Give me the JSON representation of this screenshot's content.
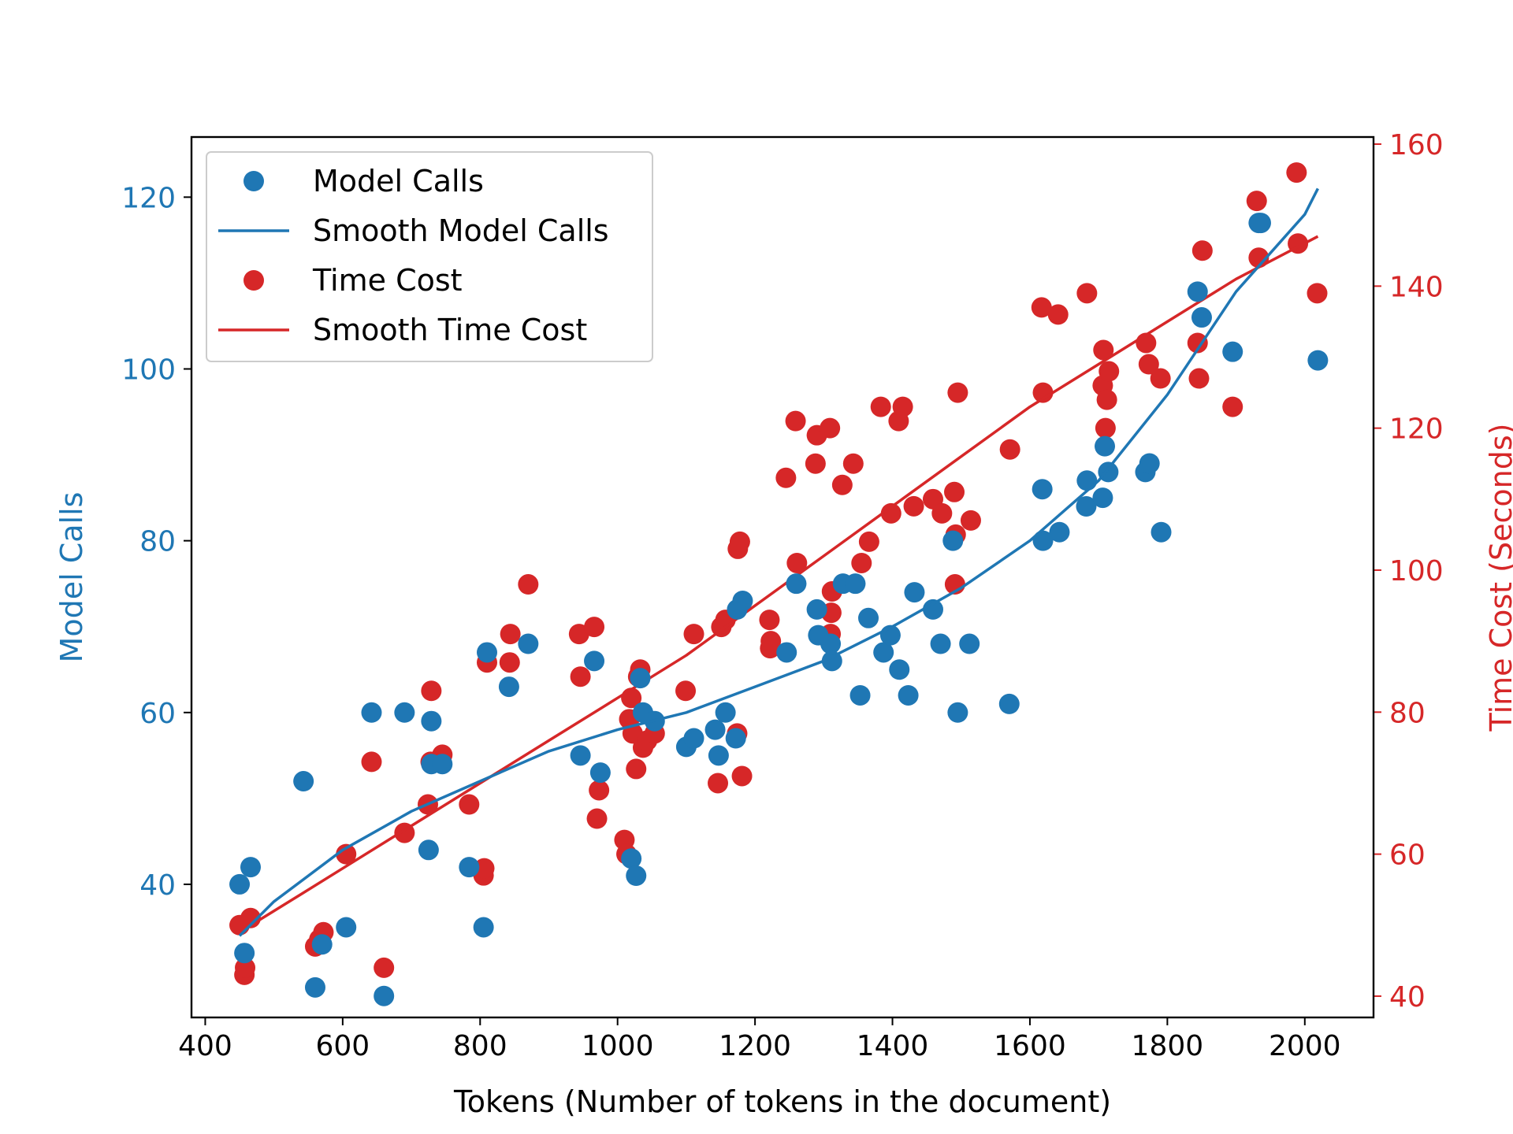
{
  "chart_data": {
    "type": "scatter",
    "title": "",
    "xlabel": "Tokens (Number of tokens in the document)",
    "ylabel_left": "Model Calls",
    "ylabel_right": "Time Cost (Seconds)",
    "xlim": [
      380,
      2100
    ],
    "ylim_left": [
      24.5,
      127
    ],
    "ylim_right": [
      37,
      161
    ],
    "x_ticks": [
      400,
      600,
      800,
      1000,
      1200,
      1400,
      1600,
      1800,
      2000
    ],
    "y_left_ticks": [
      40,
      60,
      80,
      100,
      120
    ],
    "y_right_ticks": [
      40,
      60,
      80,
      100,
      120,
      140,
      160
    ],
    "legend_position": "upper-left",
    "colors": {
      "model_calls": "#1f77b4",
      "time_cost": "#d62728",
      "axis": "#000000"
    },
    "legend": [
      "Model Calls",
      "Smooth Model Calls",
      "Time Cost",
      "Smooth Time Cost"
    ],
    "series": [
      {
        "name": "Model Calls",
        "axis": "left",
        "kind": "points",
        "x": [
          450,
          457,
          466,
          543,
          560,
          570,
          605,
          642,
          660,
          690,
          725,
          729,
          729,
          745,
          784,
          805,
          810,
          842,
          870,
          946,
          966,
          975,
          1020,
          1027,
          1033,
          1037,
          1054,
          1100,
          1111,
          1142,
          1147,
          1157,
          1172,
          1174,
          1182,
          1246,
          1260,
          1290,
          1292,
          1310,
          1312,
          1328,
          1346,
          1353,
          1365,
          1387,
          1397,
          1410,
          1423,
          1432,
          1459,
          1470,
          1488,
          1495,
          1512,
          1570,
          1618,
          1619,
          1643,
          1682,
          1683,
          1706,
          1709,
          1714,
          1768,
          1774,
          1791,
          1844,
          1850,
          1895,
          1933,
          1936,
          2019
        ],
        "y": [
          40,
          32,
          42,
          52,
          28,
          33,
          35,
          60,
          27,
          60,
          44,
          54,
          59,
          54,
          42,
          35,
          67,
          63,
          68,
          55,
          66,
          53,
          43,
          41,
          64,
          60,
          59,
          56,
          57,
          58,
          55,
          60,
          57,
          72,
          73,
          67,
          75,
          72,
          69,
          68,
          66,
          75,
          75,
          62,
          71,
          67,
          69,
          65,
          62,
          74,
          72,
          68,
          80,
          60,
          68,
          61,
          86,
          80,
          81,
          84,
          87,
          85,
          91,
          88,
          88,
          89,
          81,
          109,
          106,
          102,
          117,
          117,
          101
        ]
      },
      {
        "name": "Smooth Model Calls",
        "axis": "left",
        "kind": "line",
        "x": [
          450,
          500,
          600,
          700,
          800,
          900,
          1000,
          1100,
          1200,
          1300,
          1400,
          1500,
          1600,
          1700,
          1800,
          1900,
          2000,
          2019
        ],
        "y": [
          34,
          38,
          44,
          48.5,
          52,
          55.5,
          58,
          60,
          63,
          66,
          70,
          74.5,
          80,
          87,
          97,
          109,
          118,
          121
        ]
      },
      {
        "name": "Time Cost",
        "axis": "right",
        "kind": "points",
        "x": [
          450,
          457,
          458,
          466,
          560,
          566,
          572,
          605,
          642,
          660,
          690,
          724,
          728,
          729,
          745,
          784,
          805,
          806,
          810,
          843,
          844,
          870,
          944,
          946,
          966,
          970,
          973,
          1010,
          1013,
          1017,
          1020,
          1022,
          1027,
          1030,
          1033,
          1037,
          1043,
          1054,
          1099,
          1111,
          1146,
          1151,
          1157,
          1174,
          1175,
          1178,
          1181,
          1221,
          1222,
          1223,
          1245,
          1259,
          1261,
          1288,
          1290,
          1309,
          1310,
          1311,
          1312,
          1327,
          1343,
          1355,
          1366,
          1383,
          1398,
          1409,
          1415,
          1431,
          1459,
          1472,
          1490,
          1491,
          1492,
          1495,
          1514,
          1571,
          1617,
          1619,
          1641,
          1683,
          1706,
          1707,
          1710,
          1712,
          1715,
          1769,
          1773,
          1790,
          1844,
          1846,
          1851,
          1895,
          1930,
          1933,
          1988,
          1990,
          2018
        ],
        "y": [
          50,
          43,
          44,
          51,
          47,
          48,
          49,
          60,
          73,
          44,
          63,
          67,
          73,
          83,
          74,
          67,
          57,
          58,
          87,
          87,
          91,
          98,
          91,
          85,
          92,
          65,
          69,
          62,
          60,
          79,
          82,
          77,
          72,
          85,
          86,
          75,
          76,
          77,
          83,
          91,
          70,
          92,
          93,
          77,
          103,
          104,
          71,
          93,
          89,
          90,
          113,
          121,
          101,
          115,
          119,
          120,
          91,
          94,
          97,
          112,
          115,
          101,
          104,
          123,
          108,
          121,
          123,
          109,
          110,
          108,
          111,
          98,
          105,
          125,
          107,
          117,
          137,
          125,
          136,
          139,
          126,
          131,
          120,
          124,
          128,
          132,
          129,
          127,
          132,
          127,
          145,
          123,
          152,
          144,
          156,
          146,
          139
        ]
      },
      {
        "name": "Smooth Time Cost",
        "axis": "right",
        "kind": "line",
        "x": [
          450,
          500,
          600,
          700,
          800,
          900,
          1000,
          1100,
          1200,
          1300,
          1400,
          1500,
          1600,
          1700,
          1800,
          1900,
          2019
        ],
        "y": [
          49,
          52,
          58,
          64,
          70,
          76,
          82,
          88,
          95,
          102,
          109,
          116,
          123,
          129,
          135,
          141,
          147
        ]
      }
    ]
  }
}
